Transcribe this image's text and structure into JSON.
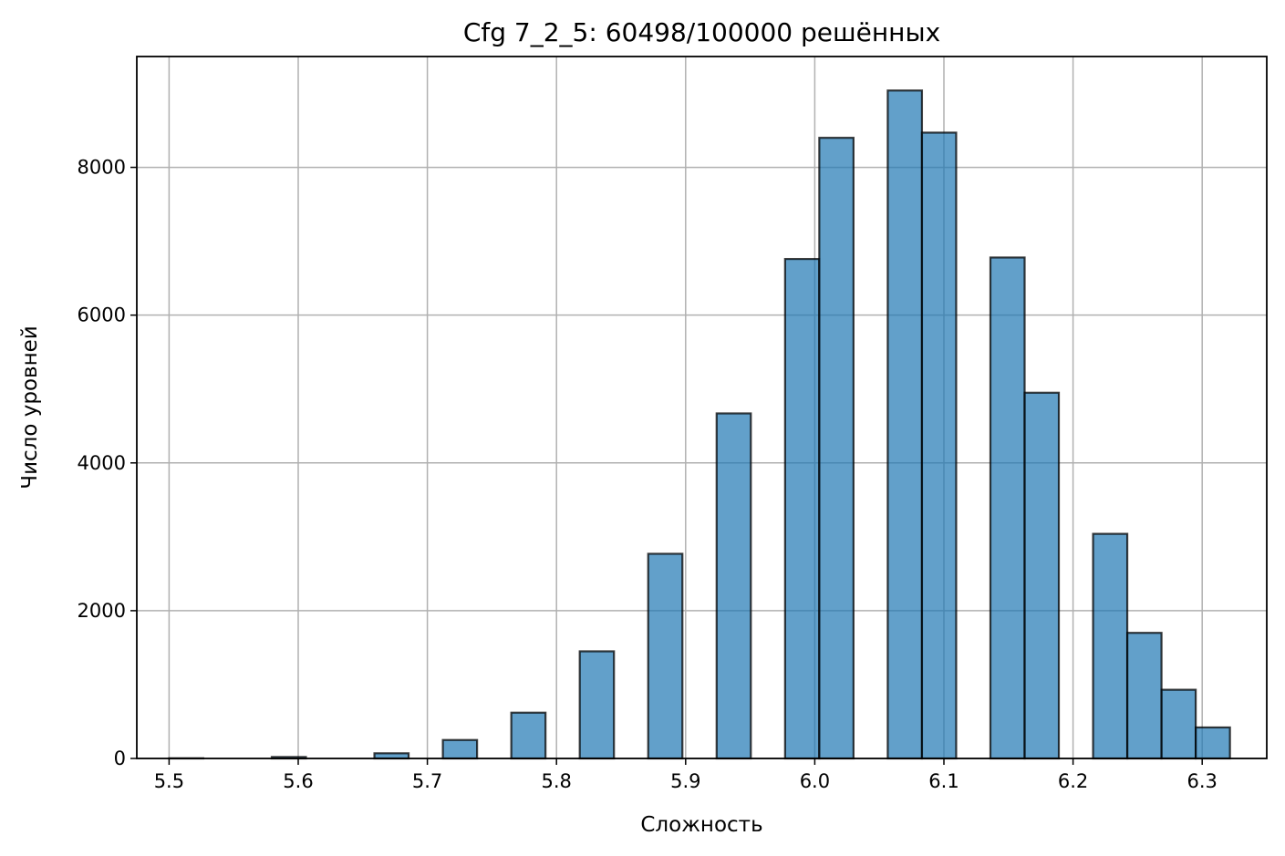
{
  "chart_data": {
    "type": "bar",
    "title": "Cfg 7_2_5: 60498/100000 решённых",
    "xlabel": "Сложность",
    "ylabel": "Число уровней",
    "xlim": [
      5.475,
      6.35
    ],
    "ylim": [
      0,
      9500
    ],
    "grid": true,
    "bar_color": "#1f77b4",
    "bar_opacity": 0.7,
    "edge_color": "#000000",
    "x_ticks": [
      5.5,
      5.6,
      5.7,
      5.8,
      5.9,
      6.0,
      6.1,
      6.2,
      6.3
    ],
    "x_tick_labels": [
      "5.5",
      "5.6",
      "5.7",
      "5.8",
      "5.9",
      "6.0",
      "6.1",
      "6.2",
      "6.3"
    ],
    "y_ticks": [
      0,
      2000,
      4000,
      6000,
      8000
    ],
    "y_tick_labels": [
      "0",
      "2000",
      "4000",
      "6000",
      "8000"
    ],
    "bins": [
      {
        "x0": 5.5,
        "x1": 5.5265,
        "count": 3
      },
      {
        "x0": 5.5265,
        "x1": 5.553,
        "count": 0
      },
      {
        "x0": 5.553,
        "x1": 5.5795,
        "count": 0
      },
      {
        "x0": 5.5795,
        "x1": 5.606,
        "count": 20
      },
      {
        "x0": 5.606,
        "x1": 5.6325,
        "count": 0
      },
      {
        "x0": 5.6325,
        "x1": 5.659,
        "count": 0
      },
      {
        "x0": 5.659,
        "x1": 5.6855,
        "count": 70
      },
      {
        "x0": 5.6855,
        "x1": 5.712,
        "count": 0
      },
      {
        "x0": 5.712,
        "x1": 5.7385,
        "count": 250
      },
      {
        "x0": 5.7385,
        "x1": 5.765,
        "count": 0
      },
      {
        "x0": 5.765,
        "x1": 5.7915,
        "count": 620
      },
      {
        "x0": 5.7915,
        "x1": 5.818,
        "count": 0
      },
      {
        "x0": 5.818,
        "x1": 5.8445,
        "count": 1450
      },
      {
        "x0": 5.8445,
        "x1": 5.871,
        "count": 0
      },
      {
        "x0": 5.871,
        "x1": 5.8975,
        "count": 2770
      },
      {
        "x0": 5.8975,
        "x1": 5.924,
        "count": 0
      },
      {
        "x0": 5.924,
        "x1": 5.9505,
        "count": 4670
      },
      {
        "x0": 5.9505,
        "x1": 5.977,
        "count": 0
      },
      {
        "x0": 5.977,
        "x1": 6.0035,
        "count": 6760
      },
      {
        "x0": 6.0035,
        "x1": 6.03,
        "count": 8400
      },
      {
        "x0": 6.03,
        "x1": 6.0565,
        "count": 0
      },
      {
        "x0": 6.0565,
        "x1": 6.083,
        "count": 9040
      },
      {
        "x0": 6.083,
        "x1": 6.1095,
        "count": 8470
      },
      {
        "x0": 6.1095,
        "x1": 6.136,
        "count": 0
      },
      {
        "x0": 6.136,
        "x1": 6.1625,
        "count": 6780
      },
      {
        "x0": 6.1625,
        "x1": 6.189,
        "count": 4950
      },
      {
        "x0": 6.189,
        "x1": 6.2155,
        "count": 0
      },
      {
        "x0": 6.2155,
        "x1": 6.242,
        "count": 3040
      },
      {
        "x0": 6.242,
        "x1": 6.2685,
        "count": 1700
      },
      {
        "x0": 6.2685,
        "x1": 6.295,
        "count": 930
      },
      {
        "x0": 6.295,
        "x1": 6.3215,
        "count": 420
      }
    ]
  }
}
